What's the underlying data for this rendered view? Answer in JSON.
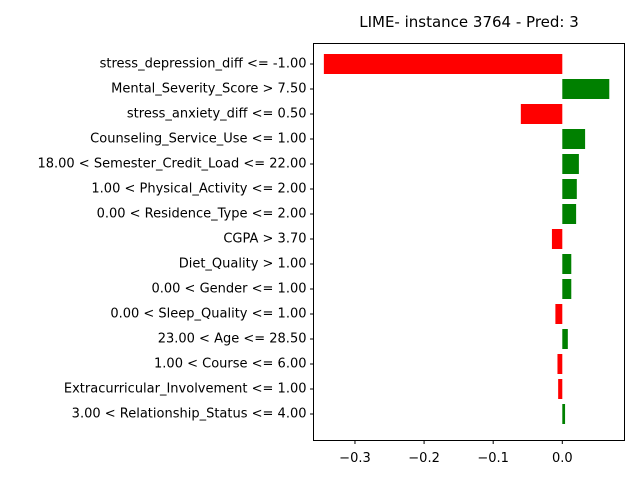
{
  "chart_data": {
    "type": "bar",
    "orientation": "horizontal",
    "title": "LIME- instance 3764 - Pred: 3",
    "xlabel": "",
    "ylabel": "",
    "xlim": [
      -0.36,
      0.09
    ],
    "xticks": [
      -0.3,
      -0.2,
      -0.1,
      0.0
    ],
    "xtick_labels": [
      "−0.3",
      "−0.2",
      "−0.1",
      "0.0"
    ],
    "grid": false,
    "colors": {
      "positive": "#008000",
      "negative": "#ff0000"
    },
    "categories": [
      "stress_depression_diff <= -1.00",
      "Mental_Severity_Score > 7.50",
      "stress_anxiety_diff <= 0.50",
      "Counseling_Service_Use <= 1.00",
      "18.00 < Semester_Credit_Load <= 22.00",
      "1.00 < Physical_Activity <= 2.00",
      "0.00 < Residence_Type <= 2.00",
      "CGPA > 3.70",
      "Diet_Quality > 1.00",
      "0.00 < Gender <= 1.00",
      "0.00 < Sleep_Quality <= 1.00",
      "23.00 < Age <= 28.50",
      "1.00 < Course <= 6.00",
      "Extracurricular_Involvement <= 1.00",
      "3.00 < Relationship_Status <= 4.00"
    ],
    "values": [
      -0.345,
      0.068,
      -0.06,
      0.033,
      0.024,
      0.021,
      0.02,
      -0.015,
      0.013,
      0.013,
      -0.01,
      0.008,
      -0.007,
      -0.006,
      0.004
    ]
  }
}
